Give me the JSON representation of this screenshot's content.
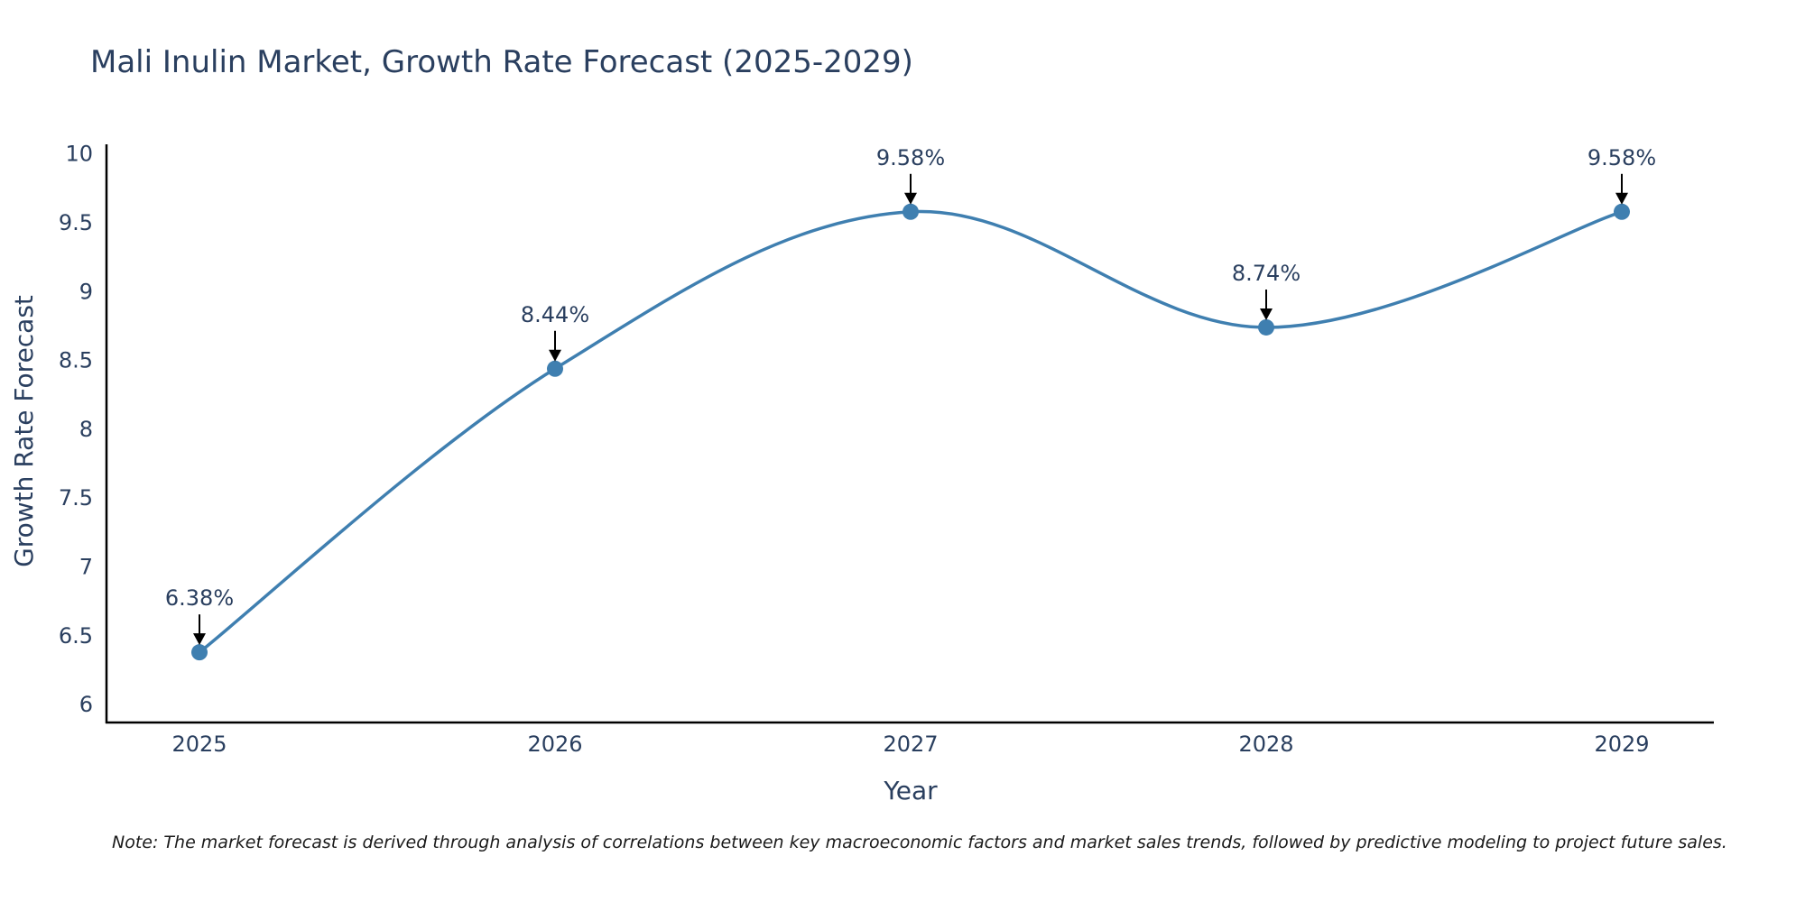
{
  "chart_data": {
    "type": "line",
    "title": "Mali Inulin Market, Growth Rate Forecast (2025-2029)",
    "xlabel": "Year",
    "ylabel": "Growth Rate Forecast",
    "categories": [
      "2025",
      "2026",
      "2027",
      "2028",
      "2029"
    ],
    "series": [
      {
        "name": "Growth Rate Forecast",
        "values": [
          6.38,
          8.44,
          9.58,
          8.74,
          9.58
        ]
      }
    ],
    "data_labels": [
      "6.38%",
      "8.44%",
      "9.58%",
      "8.74%",
      "9.58%"
    ],
    "ylim": [
      5.87,
      10.07
    ],
    "yticks": [
      6,
      6.5,
      7,
      7.5,
      8,
      8.5,
      9,
      9.5,
      10
    ],
    "ytick_labels": [
      "6",
      "6.5",
      "7",
      "7.5",
      "8",
      "8.5",
      "9",
      "9.5",
      "10"
    ],
    "line_color": "#3f7fb0",
    "grid": false,
    "note": "Note: The market forecast is derived through analysis of correlations between key macroeconomic factors and market sales trends, followed by predictive modeling to project future sales."
  }
}
